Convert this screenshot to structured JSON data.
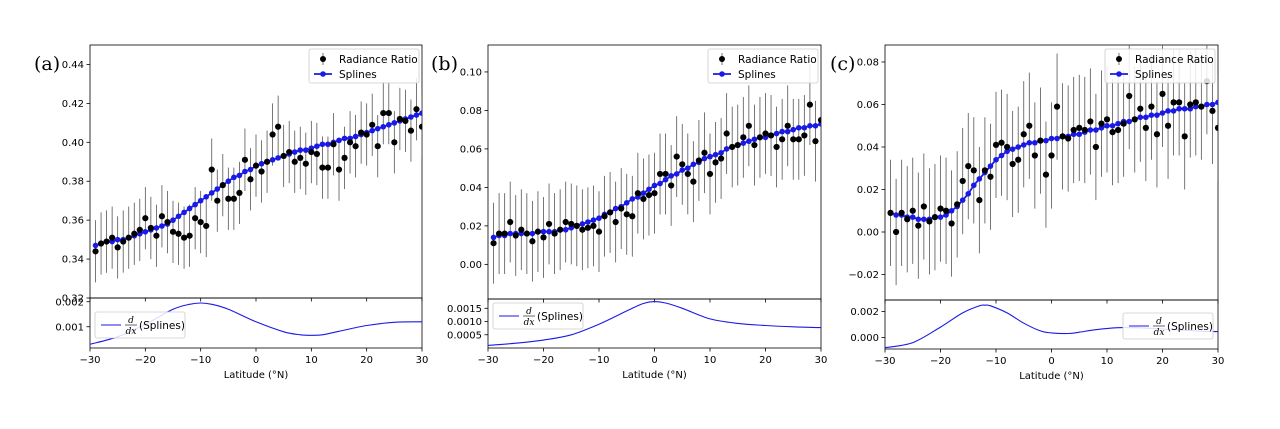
{
  "chart_data": [
    {
      "panel_label": "(a)",
      "type": "scatter",
      "x": [
        -29,
        -28,
        -27,
        -26,
        -25,
        -24,
        -23,
        -22,
        -21,
        -20,
        -19,
        -18,
        -17,
        -16,
        -15,
        -14,
        -13,
        -12,
        -11,
        -10,
        -9,
        -8,
        -7,
        -6,
        -5,
        -4,
        -3,
        -2,
        -1,
        0,
        1,
        2,
        3,
        4,
        5,
        6,
        7,
        8,
        9,
        10,
        11,
        12,
        13,
        14,
        15,
        16,
        17,
        18,
        19,
        20,
        21,
        22,
        23,
        24,
        25,
        26,
        27,
        28,
        29,
        30
      ],
      "ratio": [
        0.344,
        0.348,
        0.349,
        0.351,
        0.346,
        0.349,
        0.351,
        0.353,
        0.355,
        0.361,
        0.356,
        0.352,
        0.362,
        0.359,
        0.354,
        0.353,
        0.351,
        0.352,
        0.361,
        0.359,
        0.357,
        0.386,
        0.37,
        0.378,
        0.371,
        0.371,
        0.374,
        0.391,
        0.381,
        0.388,
        0.385,
        0.39,
        0.404,
        0.408,
        0.393,
        0.395,
        0.39,
        0.392,
        0.389,
        0.395,
        0.394,
        0.387,
        0.387,
        0.399,
        0.386,
        0.392,
        0.4,
        0.398,
        0.405,
        0.404,
        0.409,
        0.398,
        0.415,
        0.415,
        0.4,
        0.412,
        0.411,
        0.406,
        0.417,
        0.408
      ],
      "error": 0.016,
      "splines": [
        0.347,
        0.348,
        0.349,
        0.349,
        0.35,
        0.35,
        0.351,
        0.352,
        0.353,
        0.354,
        0.355,
        0.356,
        0.357,
        0.358,
        0.36,
        0.362,
        0.364,
        0.366,
        0.368,
        0.37,
        0.372,
        0.374,
        0.376,
        0.378,
        0.38,
        0.382,
        0.383,
        0.385,
        0.386,
        0.388,
        0.389,
        0.39,
        0.391,
        0.392,
        0.393,
        0.394,
        0.395,
        0.396,
        0.396,
        0.397,
        0.398,
        0.399,
        0.399,
        0.4,
        0.401,
        0.402,
        0.402,
        0.403,
        0.404,
        0.405,
        0.406,
        0.407,
        0.408,
        0.409,
        0.41,
        0.411,
        0.412,
        0.413,
        0.414,
        0.415
      ],
      "ylim": [
        0.32,
        0.45
      ],
      "yticks": [
        0.32,
        0.34,
        0.36,
        0.38,
        0.4,
        0.42,
        0.44
      ],
      "ytick_labels": [
        "0.32",
        "0.34",
        "0.36",
        "0.38",
        "0.40",
        "0.42",
        "0.44"
      ],
      "derivative": {
        "x": [
          -30,
          -25,
          -20,
          -15,
          -12,
          -10,
          -8,
          -5,
          0,
          5,
          8,
          10,
          12,
          15,
          20,
          25,
          30
        ],
        "y": [
          0.0003,
          0.0006,
          0.0011,
          0.0017,
          0.0019,
          0.00195,
          0.0019,
          0.0017,
          0.0012,
          0.0008,
          0.00068,
          0.00066,
          0.00068,
          0.00082,
          0.00105,
          0.00118,
          0.0012
        ],
        "ylim": [
          0.00015,
          0.00215
        ],
        "yticks": [
          0.001,
          0.002
        ],
        "ytick_labels": [
          "0.001",
          "0.002"
        ],
        "legend_loc": "lower-left"
      },
      "xlabel": "Latitude (°N)"
    },
    {
      "panel_label": "(b)",
      "type": "scatter",
      "x": [
        -29,
        -28,
        -27,
        -26,
        -25,
        -24,
        -23,
        -22,
        -21,
        -20,
        -19,
        -18,
        -17,
        -16,
        -15,
        -14,
        -13,
        -12,
        -11,
        -10,
        -9,
        -8,
        -7,
        -6,
        -5,
        -4,
        -3,
        -2,
        -1,
        0,
        1,
        2,
        3,
        4,
        5,
        6,
        7,
        8,
        9,
        10,
        11,
        12,
        13,
        14,
        15,
        16,
        17,
        18,
        19,
        20,
        21,
        22,
        23,
        24,
        25,
        26,
        27,
        28,
        29,
        30
      ],
      "ratio": [
        0.011,
        0.016,
        0.016,
        0.022,
        0.015,
        0.018,
        0.016,
        0.012,
        0.017,
        0.014,
        0.021,
        0.016,
        0.018,
        0.022,
        0.021,
        0.02,
        0.018,
        0.019,
        0.02,
        0.017,
        0.025,
        0.027,
        0.022,
        0.029,
        0.026,
        0.025,
        0.037,
        0.034,
        0.036,
        0.037,
        0.047,
        0.047,
        0.041,
        0.056,
        0.052,
        0.047,
        0.043,
        0.054,
        0.058,
        0.047,
        0.053,
        0.055,
        0.068,
        0.061,
        0.062,
        0.066,
        0.072,
        0.062,
        0.066,
        0.068,
        0.067,
        0.061,
        0.065,
        0.072,
        0.065,
        0.065,
        0.067,
        0.083,
        0.064,
        0.075
      ],
      "error": 0.021,
      "splines": [
        0.014,
        0.015,
        0.015,
        0.016,
        0.016,
        0.016,
        0.016,
        0.016,
        0.017,
        0.017,
        0.017,
        0.017,
        0.018,
        0.018,
        0.019,
        0.02,
        0.021,
        0.022,
        0.023,
        0.024,
        0.026,
        0.027,
        0.029,
        0.03,
        0.032,
        0.034,
        0.035,
        0.037,
        0.039,
        0.041,
        0.042,
        0.044,
        0.046,
        0.047,
        0.049,
        0.05,
        0.052,
        0.053,
        0.055,
        0.056,
        0.057,
        0.058,
        0.06,
        0.061,
        0.062,
        0.063,
        0.064,
        0.065,
        0.066,
        0.066,
        0.067,
        0.068,
        0.069,
        0.069,
        0.07,
        0.071,
        0.071,
        0.072,
        0.072,
        0.073
      ],
      "ylim": [
        -0.018,
        0.114
      ],
      "yticks": [
        0.0,
        0.02,
        0.04,
        0.06,
        0.08,
        0.1
      ],
      "ytick_labels": [
        "0.00",
        "0.02",
        "0.04",
        "0.06",
        "0.08",
        "0.10"
      ],
      "derivative": {
        "x": [
          -30,
          -25,
          -20,
          -15,
          -10,
          -5,
          -2,
          0,
          2,
          5,
          10,
          15,
          20,
          25,
          30
        ],
        "y": [
          0.0001,
          0.00018,
          0.0003,
          0.0005,
          0.0009,
          0.0014,
          0.00168,
          0.00175,
          0.0017,
          0.0015,
          0.0011,
          0.00093,
          0.00085,
          0.0008,
          0.00077
        ],
        "ylim": [
          0.0,
          0.00185
        ],
        "yticks": [
          0.0005,
          0.001,
          0.0015
        ],
        "ytick_labels": [
          "0.0005",
          "0.0010",
          "0.0015"
        ],
        "legend_loc": "upper-left"
      },
      "xlabel": "Latitude (°N)"
    },
    {
      "panel_label": "(c)",
      "type": "scatter",
      "x": [
        -29,
        -28,
        -27,
        -26,
        -25,
        -24,
        -23,
        -22,
        -21,
        -20,
        -19,
        -18,
        -17,
        -16,
        -15,
        -14,
        -13,
        -12,
        -11,
        -10,
        -9,
        -8,
        -7,
        -6,
        -5,
        -4,
        -3,
        -2,
        -1,
        0,
        1,
        2,
        3,
        4,
        5,
        6,
        7,
        8,
        9,
        10,
        11,
        12,
        13,
        14,
        15,
        16,
        17,
        18,
        19,
        20,
        21,
        22,
        23,
        24,
        25,
        26,
        27,
        28,
        29,
        30
      ],
      "ratio": [
        0.009,
        0.0,
        0.009,
        0.006,
        0.01,
        0.003,
        0.012,
        0.005,
        0.007,
        0.011,
        0.01,
        0.004,
        0.013,
        0.024,
        0.031,
        0.029,
        0.015,
        0.029,
        0.026,
        0.041,
        0.042,
        0.04,
        0.032,
        0.034,
        0.046,
        0.05,
        0.036,
        0.043,
        0.027,
        0.036,
        0.059,
        0.045,
        0.044,
        0.048,
        0.049,
        0.048,
        0.052,
        0.04,
        0.051,
        0.053,
        0.047,
        0.048,
        0.051,
        0.064,
        0.053,
        0.058,
        0.049,
        0.059,
        0.046,
        0.065,
        0.05,
        0.061,
        0.061,
        0.045,
        0.06,
        0.061,
        0.059,
        0.071,
        0.057,
        0.049
      ],
      "error": 0.025,
      "splines": [
        0.009,
        0.008,
        0.008,
        0.007,
        0.007,
        0.006,
        0.006,
        0.006,
        0.007,
        0.007,
        0.008,
        0.01,
        0.012,
        0.015,
        0.018,
        0.022,
        0.025,
        0.028,
        0.031,
        0.034,
        0.036,
        0.038,
        0.039,
        0.04,
        0.041,
        0.042,
        0.042,
        0.043,
        0.043,
        0.044,
        0.044,
        0.045,
        0.045,
        0.046,
        0.046,
        0.047,
        0.048,
        0.048,
        0.049,
        0.05,
        0.05,
        0.051,
        0.052,
        0.052,
        0.053,
        0.054,
        0.054,
        0.055,
        0.055,
        0.056,
        0.057,
        0.057,
        0.058,
        0.058,
        0.058,
        0.059,
        0.059,
        0.06,
        0.06,
        0.061
      ],
      "ylim": [
        -0.032,
        0.088
      ],
      "yticks": [
        -0.02,
        0.0,
        0.02,
        0.04,
        0.06,
        0.08
      ],
      "ytick_labels": [
        "−0.02",
        "0.00",
        "0.02",
        "0.04",
        "0.06",
        "0.08"
      ],
      "derivative": {
        "x": [
          -30,
          -25,
          -20,
          -16,
          -13,
          -12,
          -11,
          -8,
          -5,
          -2,
          0,
          3,
          5,
          8,
          12,
          15,
          18,
          22,
          26,
          30
        ],
        "y": [
          -0.0008,
          -0.0004,
          0.0008,
          0.0019,
          0.00245,
          0.0025,
          0.00245,
          0.0019,
          0.0011,
          0.0005,
          0.00035,
          0.0003,
          0.0004,
          0.0006,
          0.00075,
          0.00075,
          0.0007,
          0.0006,
          0.0005,
          0.00045
        ],
        "ylim": [
          -0.0009,
          0.0029
        ],
        "yticks": [
          0.0,
          0.002
        ],
        "ytick_labels": [
          "0.000",
          "0.002"
        ],
        "legend_loc": "lower-right"
      },
      "xlabel": "Latitude (°N)"
    }
  ],
  "shared": {
    "xlim": [
      -30,
      30
    ],
    "xticks": [
      -30,
      -20,
      -10,
      0,
      10,
      20,
      30
    ],
    "xtick_labels": [
      "−30",
      "−20",
      "−10",
      "0",
      "10",
      "20",
      "30"
    ],
    "legend_top": [
      "Radiance Ratio",
      "Splines"
    ],
    "legend_bottom_fraction_num": "d",
    "legend_bottom_fraction_den": "dx",
    "legend_bottom_text": "(Splines)",
    "colors": {
      "data": "#000000",
      "spline": "#1a1ae6",
      "errorbar": "#555555"
    }
  }
}
